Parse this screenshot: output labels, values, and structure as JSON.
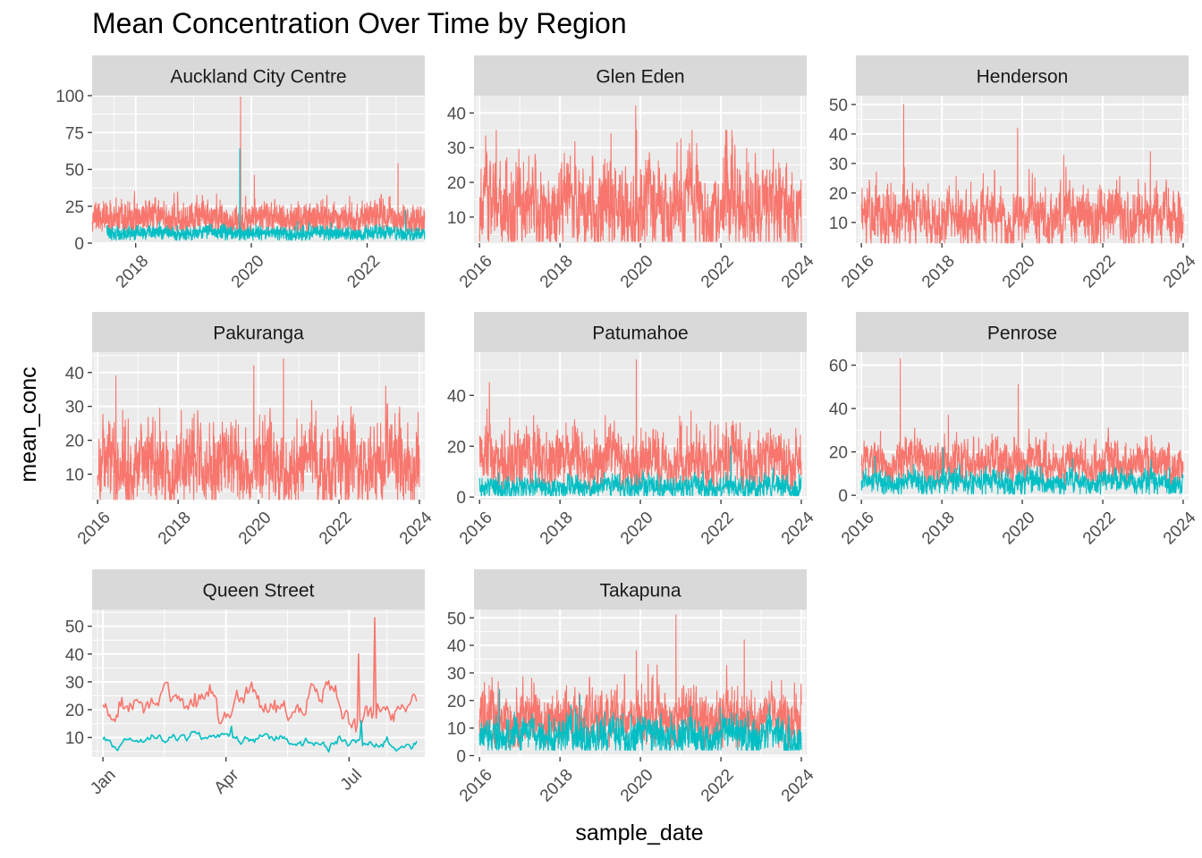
{
  "title": "Mean Concentration Over Time by Region",
  "xlabel": "sample_date",
  "ylabel": "mean_conc",
  "colors": {
    "series_a": "#F8766D",
    "series_b": "#00BFC4",
    "panel_bg": "#EBEBEB",
    "strip_bg": "#D9D9D9",
    "grid": "#FFFFFF",
    "tick_text": "#4D4D4D"
  },
  "chart_data": [
    {
      "type": "line",
      "panel": "Auckland City Centre",
      "x_type": "year",
      "x_range": [
        "2017-04-01",
        "2022-12-31"
      ],
      "x_ticks": [
        "2018",
        "2020",
        "2022"
      ],
      "y_range": [
        0,
        100
      ],
      "y_ticks": [
        0,
        25,
        50,
        75,
        100
      ],
      "series": [
        {
          "color": "#F8766D",
          "start": "2017-04-01",
          "end": "2022-12-31",
          "base": 17,
          "amp": 6,
          "min": 8,
          "max": 54,
          "seed": 11,
          "spikes": [
            {
              "x": "2019-10-25",
              "y": 99
            },
            {
              "x": "2020-01-20",
              "y": 46
            },
            {
              "x": "2022-07-15",
              "y": 54
            }
          ]
        },
        {
          "color": "#00BFC4",
          "start": "2017-07-01",
          "end": "2022-12-31",
          "base": 7,
          "amp": 2.5,
          "min": 2,
          "max": 22,
          "seed": 12,
          "spikes": [
            {
              "x": "2019-10-20",
              "y": 64
            },
            {
              "x": "2022-09-01",
              "y": 22
            }
          ]
        }
      ]
    },
    {
      "type": "line",
      "panel": "Glen Eden",
      "x_type": "year",
      "x_range": [
        "2015-11-12",
        "2024-02-19"
      ],
      "x_ticks": [
        "2016",
        "2018",
        "2020",
        "2022",
        "2024"
      ],
      "y_range": [
        2.5,
        45
      ],
      "y_ticks": [
        10,
        20,
        30,
        40
      ],
      "series": [
        {
          "color": "#F8766D",
          "start": "2016-01-01",
          "end": "2024-01-01",
          "base": 13,
          "amp": 8,
          "min": 3,
          "max": 35,
          "seed": 21,
          "spikes": [
            {
              "x": "2019-11-20",
              "y": 42
            },
            {
              "x": "2016-06-01",
              "y": 35
            },
            {
              "x": "2019-04-10",
              "y": 34
            }
          ]
        }
      ]
    },
    {
      "type": "line",
      "panel": "Henderson",
      "x_type": "year",
      "x_range": [
        "2015-11-12",
        "2024-02-19"
      ],
      "x_ticks": [
        "2016",
        "2018",
        "2020",
        "2022",
        "2024"
      ],
      "y_range": [
        3,
        53
      ],
      "y_ticks": [
        10,
        20,
        30,
        40,
        50
      ],
      "series": [
        {
          "color": "#F8766D",
          "start": "2016-01-01",
          "end": "2024-01-01",
          "base": 12,
          "amp": 6,
          "min": 3,
          "max": 33,
          "seed": 31,
          "spikes": [
            {
              "x": "2017-01-20",
              "y": 50
            },
            {
              "x": "2019-11-20",
              "y": 42
            },
            {
              "x": "2023-03-10",
              "y": 34
            }
          ]
        }
      ]
    },
    {
      "type": "line",
      "panel": "Pakuranga",
      "x_type": "year",
      "x_range": [
        "2015-11-12",
        "2024-02-19"
      ],
      "x_ticks": [
        "2016",
        "2018",
        "2020",
        "2022",
        "2024"
      ],
      "y_range": [
        2.5,
        46
      ],
      "y_ticks": [
        10,
        20,
        30,
        40
      ],
      "series": [
        {
          "color": "#F8766D",
          "start": "2016-01-01",
          "end": "2024-01-01",
          "base": 13,
          "amp": 7,
          "min": 2.5,
          "max": 39,
          "seed": 41,
          "spikes": [
            {
              "x": "2019-11-20",
              "y": 42
            },
            {
              "x": "2020-08-15",
              "y": 44
            },
            {
              "x": "2016-06-15",
              "y": 39
            },
            {
              "x": "2023-03-01",
              "y": 36
            }
          ]
        }
      ]
    },
    {
      "type": "line",
      "panel": "Patumahoe",
      "x_type": "year",
      "x_range": [
        "2015-11-12",
        "2024-02-19"
      ],
      "x_ticks": [
        "2016",
        "2018",
        "2020",
        "2022",
        "2024"
      ],
      "y_range": [
        -1,
        57
      ],
      "y_ticks": [
        0,
        20,
        40
      ],
      "series": [
        {
          "color": "#F8766D",
          "start": "2016-01-01",
          "end": "2024-01-01",
          "base": 14,
          "amp": 7,
          "min": 3,
          "max": 45,
          "seed": 51,
          "spikes": [
            {
              "x": "2019-11-25",
              "y": 54
            },
            {
              "x": "2016-04-01",
              "y": 45
            }
          ]
        },
        {
          "color": "#00BFC4",
          "start": "2016-01-01",
          "end": "2024-01-01",
          "base": 4,
          "amp": 2.5,
          "min": 0.5,
          "max": 20,
          "seed": 52,
          "spikes": [
            {
              "x": "2022-04-01",
              "y": 20
            }
          ]
        }
      ]
    },
    {
      "type": "line",
      "panel": "Penrose",
      "x_type": "year",
      "x_range": [
        "2015-11-12",
        "2024-02-19"
      ],
      "x_ticks": [
        "2016",
        "2018",
        "2020",
        "2022",
        "2024"
      ],
      "y_range": [
        -2,
        66
      ],
      "y_ticks": [
        0,
        20,
        40,
        60
      ],
      "series": [
        {
          "color": "#F8766D",
          "start": "2016-01-01",
          "end": "2024-01-01",
          "base": 15,
          "amp": 6,
          "min": 5,
          "max": 37,
          "seed": 61,
          "spikes": [
            {
              "x": "2016-12-20",
              "y": 63
            },
            {
              "x": "2019-11-25",
              "y": 51
            },
            {
              "x": "2018-03-01",
              "y": 37
            }
          ]
        },
        {
          "color": "#00BFC4",
          "start": "2016-01-01",
          "end": "2024-01-01",
          "base": 6,
          "amp": 3,
          "min": 0.5,
          "max": 22,
          "seed": 62,
          "spikes": [
            {
              "x": "2016-05-01",
              "y": 18
            },
            {
              "x": "2018-01-15",
              "y": 22
            },
            {
              "x": "2021-04-01",
              "y": 17
            }
          ]
        }
      ]
    },
    {
      "type": "line",
      "panel": "Queen Street",
      "x_type": "month",
      "x_range": [
        "2023-12-24",
        "2024-08-26"
      ],
      "x_ticks": [
        "Jan",
        "Apr",
        "Jul"
      ],
      "x_tick_dates": [
        "2024-01-01",
        "2024-04-01",
        "2024-07-01"
      ],
      "y_range": [
        3,
        56
      ],
      "y_ticks": [
        10,
        20,
        30,
        40,
        50
      ],
      "series": [
        {
          "color": "#F8766D",
          "start": "2024-01-01",
          "end": "2024-08-20",
          "base": 21,
          "amp": 5,
          "min": 6,
          "max": 41,
          "seed": 71,
          "smooth": true,
          "spikes": [
            {
              "x": "2024-07-20",
              "y": 53
            },
            {
              "x": "2024-07-08",
              "y": 40
            }
          ]
        },
        {
          "color": "#00BFC4",
          "start": "2024-01-01",
          "end": "2024-08-20",
          "base": 8.5,
          "amp": 2,
          "min": 3,
          "max": 16,
          "seed": 72,
          "smooth": true,
          "spikes": [
            {
              "x": "2024-07-10",
              "y": 16
            },
            {
              "x": "2024-04-05",
              "y": 14
            }
          ]
        }
      ]
    },
    {
      "type": "line",
      "panel": "Takapuna",
      "x_type": "year",
      "x_range": [
        "2015-11-12",
        "2024-02-19"
      ],
      "x_ticks": [
        "2016",
        "2018",
        "2020",
        "2022",
        "2024"
      ],
      "y_range": [
        -0.5,
        53
      ],
      "y_ticks": [
        0,
        10,
        20,
        30,
        40,
        50
      ],
      "series": [
        {
          "color": "#F8766D",
          "start": "2016-01-01",
          "end": "2024-01-01",
          "base": 14,
          "amp": 6,
          "min": 3,
          "max": 33,
          "seed": 81,
          "spikes": [
            {
              "x": "2020-11-20",
              "y": 51
            },
            {
              "x": "2022-08-01",
              "y": 42
            },
            {
              "x": "2019-11-25",
              "y": 38
            }
          ]
        },
        {
          "color": "#00BFC4",
          "start": "2016-01-01",
          "end": "2024-01-01",
          "base": 7,
          "amp": 4,
          "min": 2,
          "max": 24,
          "seed": 82,
          "spikes": [
            {
              "x": "2016-07-01",
              "y": 24
            },
            {
              "x": "2018-07-01",
              "y": 22
            }
          ]
        }
      ]
    }
  ]
}
